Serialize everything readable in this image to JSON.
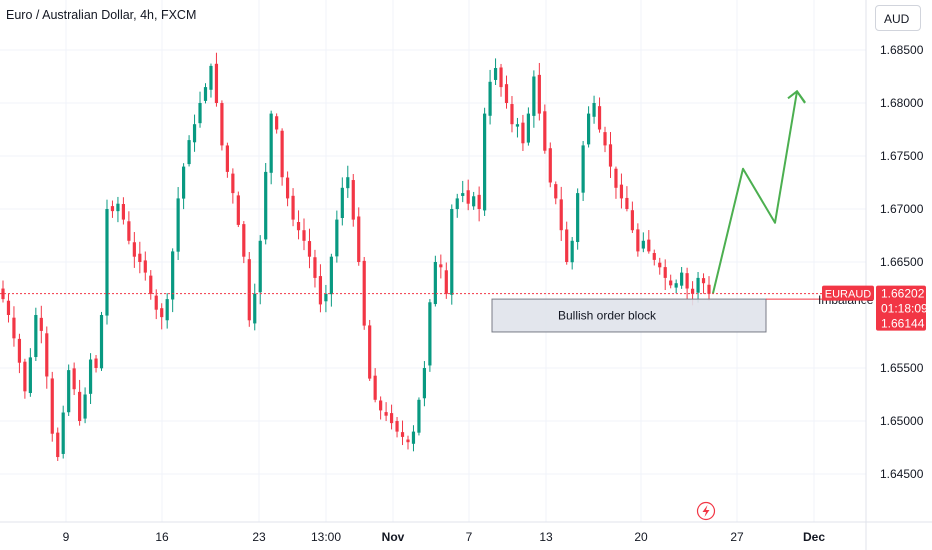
{
  "header": {
    "title": "Euro / Australian Dollar, 4h, FXCM",
    "currency": "AUD"
  },
  "chart_data": {
    "type": "candlestick",
    "symbol": "EURAUD",
    "title": "Euro / Australian Dollar, 4h, FXCM",
    "y_ticks": [
      1.685,
      1.68,
      1.675,
      1.67,
      1.665,
      1.655,
      1.65,
      1.645
    ],
    "y_tick_labels": [
      "1.68500",
      "1.68000",
      "1.67500",
      "1.67000",
      "1.66500",
      "1.65500",
      "1.65000",
      "1.64500"
    ],
    "ylim": [
      1.6424,
      1.6885
    ],
    "x_ticks": [
      {
        "label": "9",
        "bold": false
      },
      {
        "label": "16",
        "bold": false
      },
      {
        "label": "23",
        "bold": false
      },
      {
        "label": "13:00",
        "bold": false
      },
      {
        "label": "Nov",
        "bold": true
      },
      {
        "label": "7",
        "bold": false
      },
      {
        "label": "13",
        "bold": false
      },
      {
        "label": "20",
        "bold": false
      },
      {
        "label": "27",
        "bold": false
      },
      {
        "label": "Dec",
        "bold": true
      }
    ],
    "close_series": [
      1.6615,
      1.66,
      1.6578,
      1.6555,
      1.6528,
      1.656,
      1.66,
      1.6585,
      1.6542,
      1.6488,
      1.6466,
      1.6508,
      1.6548,
      1.653,
      1.65,
      1.6525,
      1.6558,
      1.655,
      1.66,
      1.67,
      1.6698,
      1.6705,
      1.669,
      1.667,
      1.6655,
      1.665,
      1.664,
      1.662,
      1.6605,
      1.6598,
      1.6615,
      1.666,
      1.671,
      1.674,
      1.6765,
      1.678,
      1.68,
      1.6815,
      1.6835,
      1.68,
      1.676,
      1.6735,
      1.6715,
      1.6685,
      1.6655,
      1.6595,
      1.662,
      1.667,
      1.6735,
      1.679,
      1.6775,
      1.673,
      1.671,
      1.669,
      1.668,
      1.667,
      1.6655,
      1.6635,
      1.661,
      1.662,
      1.6655,
      1.669,
      1.672,
      1.673,
      1.669,
      1.665,
      1.659,
      1.654,
      1.652,
      1.651,
      1.6505,
      1.6498,
      1.649,
      1.6485,
      1.648,
      1.649,
      1.652,
      1.655,
      1.6612,
      1.665,
      1.6645,
      1.662,
      1.67,
      1.671,
      1.6715,
      1.6705,
      1.6712,
      1.67,
      1.679,
      1.682,
      1.6833,
      1.6815,
      1.68,
      1.678,
      1.678,
      1.6762,
      1.679,
      1.6825,
      1.679,
      1.6755,
      1.6725,
      1.671,
      1.668,
      1.665,
      1.667,
      1.6715,
      1.676,
      1.679,
      1.68,
      1.6775,
      1.676,
      1.674,
      1.672,
      1.671,
      1.67,
      1.668,
      1.666,
      1.667,
      1.666,
      1.6652,
      1.6645,
      1.6635,
      1.6628,
      1.663,
      1.664,
      1.6625,
      1.662,
      1.6635,
      1.663,
      1.662
    ],
    "projection": [
      {
        "price": 1.66205
      },
      {
        "price": 1.6738
      },
      {
        "price": 1.6687
      },
      {
        "price": 1.6811
      },
      {
        "price": 1.68
      }
    ],
    "annotations": [
      {
        "text": "Bullish order block",
        "price_top": 1.6615,
        "price_bottom": 1.6584
      },
      {
        "text": "Imbalance",
        "price": 1.6615
      }
    ],
    "price_labels": {
      "symbol": "EURAUD",
      "price": "1.66202",
      "countdown": "01:18:09",
      "price2": "1.66144"
    },
    "last_price": 1.66202,
    "colors": {
      "up": "#089981",
      "down": "#f23645",
      "projection": "#4caf50",
      "price_line": "#f23645",
      "order_block_fill": "#e0e3eb",
      "order_block_border": "#787b86"
    }
  }
}
